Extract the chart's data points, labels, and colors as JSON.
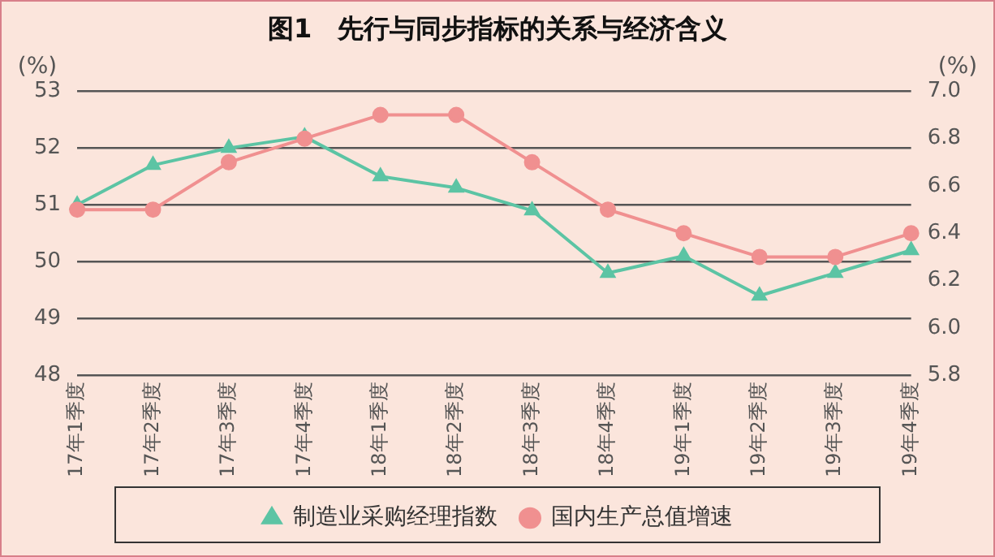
{
  "chart_data": {
    "type": "line",
    "title": "图1　先行与同步指标的关系与经济含义",
    "ylabel": "(%)",
    "y2label": "(%)",
    "categories": [
      "17年1季度",
      "17年2季度",
      "17年3季度",
      "17年4季度",
      "18年1季度",
      "18年2季度",
      "18年3季度",
      "18年4季度",
      "19年1季度",
      "19年2季度",
      "19年3季度",
      "19年4季度"
    ],
    "series": [
      {
        "name": "制造业采购经理指数",
        "color": "#5cc4a4",
        "marker": "triangle",
        "values": [
          51.0,
          51.7,
          52.0,
          52.2,
          51.5,
          51.3,
          50.9,
          49.8,
          50.1,
          49.4,
          49.8,
          50.2
        ]
      },
      {
        "name": "国内生产总值增速",
        "color": "#f09090",
        "marker": "circle",
        "axis": "y2",
        "values": [
          6.5,
          6.5,
          6.7,
          6.8,
          6.9,
          6.9,
          6.7,
          6.5,
          6.4,
          6.3,
          6.3,
          6.4
        ]
      }
    ],
    "ylim": [
      48,
      53
    ],
    "yticks": [
      48,
      49,
      50,
      51,
      52,
      53
    ],
    "y2lim": [
      5.8,
      7.0
    ],
    "y2ticks": [
      {
        "value": 5.8,
        "label": "5.8"
      },
      {
        "value": 6.0,
        "label": "6.0"
      },
      {
        "value": 6.2,
        "label": "6.2"
      },
      {
        "value": 6.4,
        "label": "6.4"
      },
      {
        "value": 6.6,
        "label": "6.6"
      },
      {
        "value": 6.8,
        "label": "6.8"
      },
      {
        "value": 7.0,
        "label": "7.0"
      }
    ],
    "grid": "y",
    "legend": "bottom",
    "line_style": "solid"
  }
}
